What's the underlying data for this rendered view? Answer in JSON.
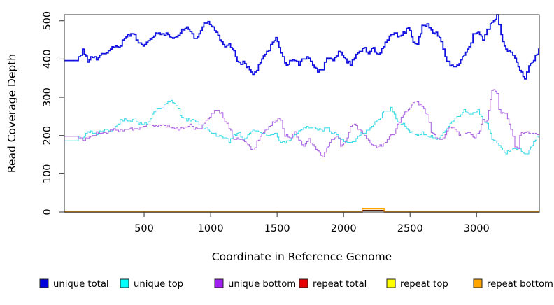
{
  "chart_data": {
    "type": "line",
    "title": "",
    "xlabel": "Coordinate in Reference Genome",
    "ylabel": "Read Coverage Depth",
    "xlim": [
      -100,
      3472
    ],
    "ylim": [
      0,
      516
    ],
    "x_ticks": [
      500,
      1000,
      1500,
      2000,
      2500,
      3000
    ],
    "y_ticks": [
      0,
      100,
      200,
      300,
      400,
      500
    ],
    "grid": false,
    "legend_position": "bottom",
    "series": [
      {
        "name": "unique total",
        "legend_color": "#0000DC",
        "line_color": "#1111E0",
        "line_width": 1.8,
        "x": [
          0,
          5,
          36,
          73,
          110,
          141,
          178,
          215,
          246,
          283,
          320,
          351,
          388,
          424,
          456,
          493,
          529,
          561,
          597,
          634,
          666,
          702,
          739,
          771,
          807,
          844,
          875,
          912,
          949,
          980,
          1017,
          1054,
          1069,
          1106,
          1138,
          1174,
          1211,
          1243,
          1279,
          1316,
          1347,
          1384,
          1421,
          1452,
          1489,
          1526,
          1557,
          1594,
          1631,
          1662,
          1699,
          1735,
          1767,
          1804,
          1840,
          1872,
          1908,
          1945,
          1977,
          2013,
          2050,
          2081,
          2118,
          2155,
          2186,
          2223,
          2260,
          2312,
          2343,
          2380,
          2417,
          2448,
          2485,
          2522,
          2553,
          2590,
          2627,
          2658,
          2695,
          2732,
          2763,
          2800,
          2837,
          2868,
          2905,
          2942,
          2973,
          3010,
          3046,
          3078,
          3115,
          3151,
          3183,
          3220,
          3256,
          3288,
          3324,
          3361,
          3393,
          3429,
          3466
        ],
        "y": [
          396,
          403,
          423,
          396,
          405,
          399,
          414,
          414,
          430,
          436,
          432,
          458,
          463,
          460,
          441,
          432,
          449,
          454,
          467,
          463,
          469,
          458,
          454,
          472,
          481,
          476,
          454,
          463,
          490,
          494,
          481,
          460,
          448,
          430,
          436,
          418,
          387,
          390,
          375,
          359,
          372,
          399,
          418,
          436,
          454,
          418,
          385,
          394,
          399,
          387,
          399,
          403,
          385,
          368,
          375,
          403,
          396,
          412,
          418,
          396,
          387,
          403,
          421,
          427,
          418,
          430,
          408,
          440,
          460,
          467,
          458,
          469,
          481,
          448,
          436,
          485,
          487,
          472,
          467,
          448,
          403,
          387,
          381,
          390,
          414,
          427,
          463,
          469,
          454,
          476,
          494,
          513,
          460,
          427,
          421,
          405,
          372,
          350,
          381,
          399,
          421
        ]
      },
      {
        "name": "unique top",
        "legend_color": "#00FFFF",
        "line_color": "#3FDCE8",
        "line_width": 1.1,
        "x": [
          0,
          5,
          36,
          73,
          110,
          141,
          178,
          215,
          246,
          283,
          320,
          351,
          388,
          424,
          456,
          493,
          529,
          561,
          597,
          634,
          666,
          702,
          739,
          771,
          807,
          844,
          875,
          912,
          949,
          980,
          1017,
          1054,
          1106,
          1138,
          1174,
          1211,
          1243,
          1279,
          1316,
          1347,
          1384,
          1421,
          1452,
          1489,
          1526,
          1557,
          1594,
          1631,
          1662,
          1699,
          1735,
          1767,
          1804,
          1840,
          1872,
          1908,
          1945,
          1977,
          2013,
          2050,
          2081,
          2118,
          2155,
          2186,
          2223,
          2260,
          2291,
          2312,
          2343,
          2354,
          2380,
          2417,
          2448,
          2485,
          2522,
          2553,
          2590,
          2627,
          2658,
          2695,
          2732,
          2763,
          2800,
          2837,
          2868,
          2905,
          2942,
          2973,
          3010,
          3046,
          3078,
          3115,
          3151,
          3183,
          3220,
          3256,
          3288,
          3324,
          3361,
          3393,
          3429,
          3466
        ],
        "y": [
          185,
          192,
          194,
          210,
          207,
          204,
          213,
          216,
          213,
          222,
          238,
          240,
          234,
          243,
          234,
          229,
          234,
          258,
          268,
          275,
          284,
          289,
          280,
          256,
          243,
          240,
          238,
          231,
          222,
          213,
          207,
          198,
          192,
          185,
          201,
          204,
          192,
          198,
          213,
          216,
          204,
          200,
          204,
          207,
          180,
          183,
          185,
          204,
          213,
          219,
          222,
          222,
          213,
          216,
          222,
          207,
          204,
          189,
          183,
          180,
          185,
          201,
          210,
          216,
          228,
          240,
          258,
          266,
          268,
          271,
          253,
          231,
          229,
          213,
          204,
          198,
          207,
          201,
          198,
          194,
          198,
          210,
          231,
          247,
          253,
          266,
          256,
          258,
          268,
          240,
          234,
          192,
          180,
          165,
          156,
          161,
          165,
          167,
          148,
          161,
          185,
          198
        ]
      },
      {
        "name": "unique bottom",
        "legend_color": "#A020F0",
        "line_color": "#AC68E0",
        "line_width": 1.1,
        "x": [
          0,
          5,
          36,
          73,
          110,
          141,
          178,
          215,
          246,
          283,
          320,
          351,
          388,
          424,
          456,
          493,
          529,
          561,
          597,
          634,
          666,
          702,
          739,
          771,
          807,
          844,
          875,
          912,
          949,
          980,
          1017,
          1054,
          1080,
          1106,
          1138,
          1174,
          1211,
          1243,
          1279,
          1316,
          1347,
          1384,
          1421,
          1452,
          1489,
          1505,
          1526,
          1557,
          1594,
          1631,
          1662,
          1699,
          1735,
          1767,
          1804,
          1840,
          1872,
          1908,
          1945,
          1977,
          2013,
          2050,
          2081,
          2118,
          2155,
          2186,
          2223,
          2260,
          2312,
          2343,
          2380,
          2417,
          2448,
          2485,
          2522,
          2553,
          2590,
          2627,
          2658,
          2695,
          2732,
          2763,
          2800,
          2837,
          2868,
          2905,
          2942,
          2973,
          3010,
          3046,
          3078,
          3115,
          3151,
          3167,
          3183,
          3220,
          3256,
          3288,
          3309,
          3324,
          3361,
          3393,
          3429,
          3466
        ],
        "y": [
          198,
          194,
          189,
          192,
          198,
          207,
          210,
          207,
          213,
          216,
          213,
          216,
          219,
          216,
          219,
          225,
          229,
          222,
          225,
          229,
          225,
          222,
          216,
          219,
          222,
          229,
          219,
          216,
          230,
          245,
          260,
          267,
          256,
          238,
          222,
          192,
          194,
          189,
          176,
          158,
          185,
          204,
          219,
          229,
          240,
          249,
          243,
          201,
          192,
          207,
          185,
          176,
          189,
          174,
          161,
          148,
          170,
          189,
          201,
          176,
          185,
          222,
          231,
          213,
          200,
          185,
          176,
          170,
          180,
          198,
          204,
          238,
          253,
          271,
          286,
          286,
          277,
          253,
          210,
          198,
          189,
          201,
          225,
          216,
          204,
          201,
          210,
          194,
          204,
          238,
          240,
          322,
          308,
          271,
          258,
          256,
          216,
          174,
          167,
          201,
          210,
          204,
          207,
          204
        ]
      },
      {
        "name": "repeat total",
        "legend_color": "#E60000",
        "line_color": "#5A1600",
        "line_width": 1.5,
        "x": [
          0,
          2125,
          2140,
          2290,
          2305,
          3466
        ],
        "y": [
          0,
          0,
          4,
          4,
          0,
          0
        ]
      },
      {
        "name": "repeat top",
        "legend_color": "#FFFF00",
        "line_color": "#FFE800",
        "line_width": 1.1,
        "x": [
          0,
          3466
        ],
        "y": [
          0,
          0
        ]
      },
      {
        "name": "repeat bottom",
        "legend_color": "#FFA500",
        "line_color": "#FFA500",
        "line_width": 1.4,
        "x": [
          0,
          2125,
          2140,
          2290,
          2305,
          3466
        ],
        "y": [
          1,
          1,
          8,
          8,
          1,
          1
        ]
      }
    ]
  }
}
